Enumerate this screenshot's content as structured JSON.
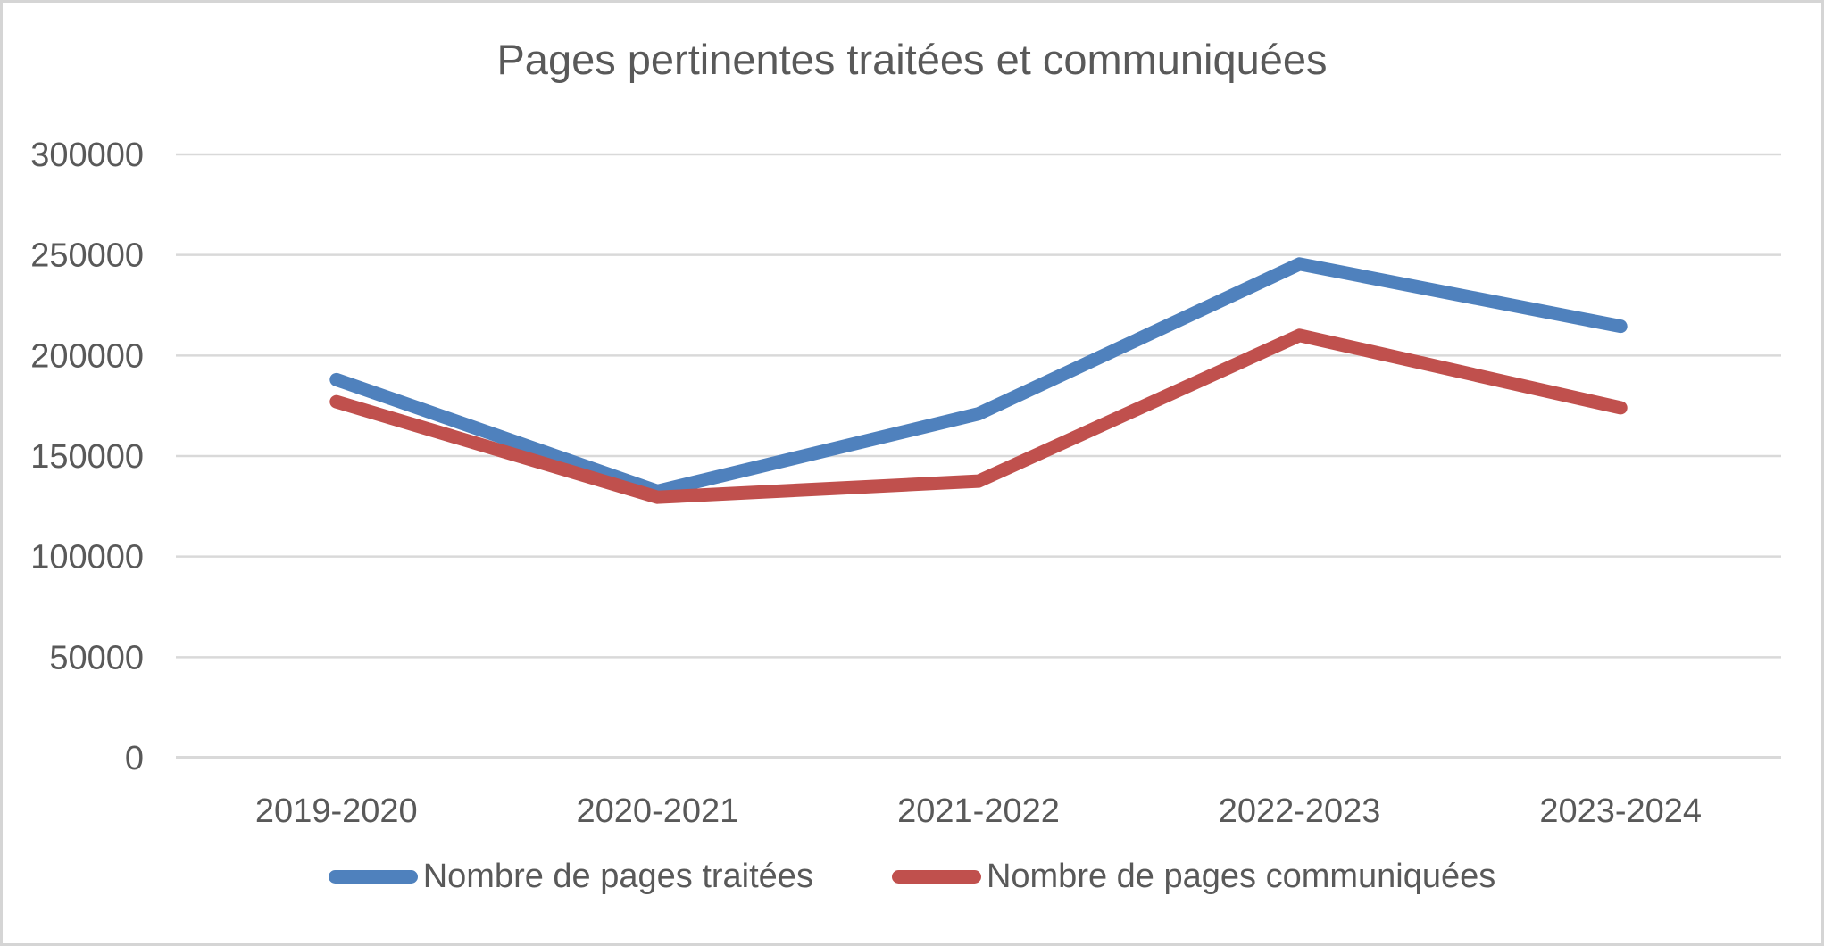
{
  "chart_data": {
    "type": "line",
    "title": "Pages pertinentes traitées et communiquées",
    "categories": [
      "2019-2020",
      "2020-2021",
      "2021-2022",
      "2022-2023",
      "2023-2024"
    ],
    "series": [
      {
        "name": "Nombre de pages traitées",
        "color": "#4F81BD",
        "values": [
          188000,
          132500,
          171000,
          245500,
          214500
        ]
      },
      {
        "name": "Nombre de pages communiquées",
        "color": "#C0504D",
        "values": [
          177000,
          129500,
          137500,
          210000,
          174000
        ]
      }
    ],
    "ylim": [
      0,
      300000
    ],
    "yticks": [
      0,
      50000,
      100000,
      150000,
      200000,
      250000,
      300000
    ],
    "grid": true,
    "legend_position": "bottom",
    "colors": {
      "text": "#595959",
      "gridline": "#D9D9D9",
      "axis_line": "#D9D9D9"
    }
  }
}
